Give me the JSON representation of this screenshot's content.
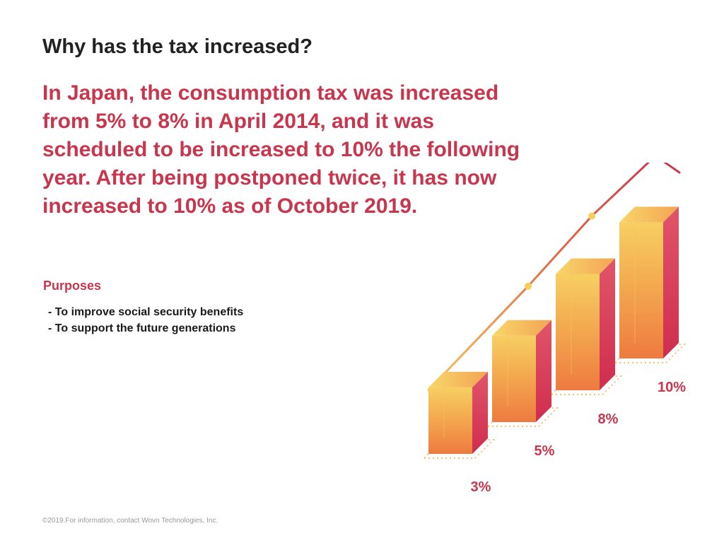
{
  "page": {
    "title": "Why has the tax increased?",
    "lead": "In Japan, the consumption tax was increased from 5% to 8% in April 2014, and it was scheduled to be increased to 10% the following year. After being postponed twice, it has now increased to 10% as of October 2019.",
    "purposes_heading": "Purposes",
    "purposes": [
      "- To improve social security benefits",
      "- To support the future generations"
    ],
    "footer": "©2019.For information, contact Wovn Technologies, Inc."
  },
  "colors": {
    "accent": "#c8364e",
    "bar_light": "#f6c75a",
    "bar_mid": "#ee8a44",
    "bar_dark": "#d83a56",
    "trend_point": "#f6d05a"
  },
  "chart_data": {
    "type": "bar",
    "categories": [
      "3%",
      "5%",
      "8%",
      "10%"
    ],
    "values": [
      3,
      5,
      8,
      10
    ],
    "data_labels": [
      "3%",
      "5%",
      "8%",
      "10%"
    ],
    "title": "",
    "xlabel": "",
    "ylabel": "",
    "ylim": [
      0,
      10
    ],
    "grid": false,
    "legend": "none",
    "trend_line": true
  }
}
